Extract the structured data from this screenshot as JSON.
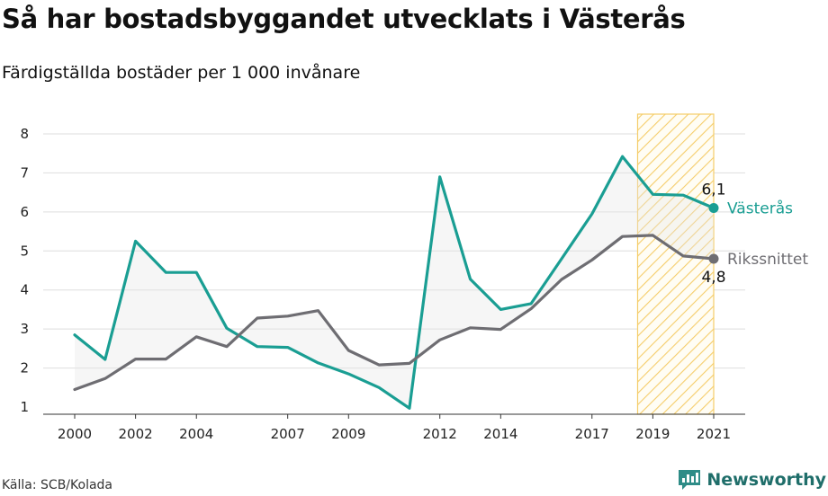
{
  "header": {
    "title": "Så har bostadsbyggandet utvecklats i Västerås",
    "subtitle": "Färdigställda bostäder per 1 000 invånare"
  },
  "footer": {
    "source": "Källa: SCB/Kolada",
    "brand": "Newsworthy",
    "brand_icon": "newsworthy-logo-icon"
  },
  "chart_data": {
    "type": "line",
    "x": [
      2000,
      2001,
      2002,
      2003,
      2004,
      2005,
      2006,
      2007,
      2008,
      2009,
      2010,
      2011,
      2012,
      2013,
      2014,
      2015,
      2016,
      2017,
      2018,
      2019,
      2020,
      2021
    ],
    "xticks": [
      "2000",
      "2002",
      "2004",
      "2007",
      "2009",
      "2012",
      "2014",
      "2017",
      "2019",
      "2021"
    ],
    "ylim": [
      1,
      8
    ],
    "yticks": [
      "1",
      "2",
      "3",
      "4",
      "5",
      "6",
      "7",
      "8"
    ],
    "grid": true,
    "highlight_range": [
      2018.5,
      2021
    ],
    "series": [
      {
        "name": "Västerås",
        "color": "#1a9e93",
        "values": [
          2.85,
          2.22,
          5.25,
          4.45,
          4.45,
          3.02,
          2.55,
          2.53,
          2.13,
          1.85,
          1.5,
          0.97,
          6.9,
          4.28,
          3.5,
          3.65,
          4.8,
          5.95,
          7.42,
          6.45,
          6.43,
          6.1
        ],
        "end_label": "6,1"
      },
      {
        "name": "Rikssnittet",
        "color": "#6e6d72",
        "values": [
          1.45,
          1.73,
          2.23,
          2.23,
          2.8,
          2.55,
          3.28,
          3.33,
          3.47,
          2.45,
          2.08,
          2.12,
          2.72,
          3.03,
          2.99,
          3.52,
          4.27,
          4.77,
          5.37,
          5.4,
          4.87,
          4.8
        ],
        "end_label": "4,8"
      }
    ]
  }
}
